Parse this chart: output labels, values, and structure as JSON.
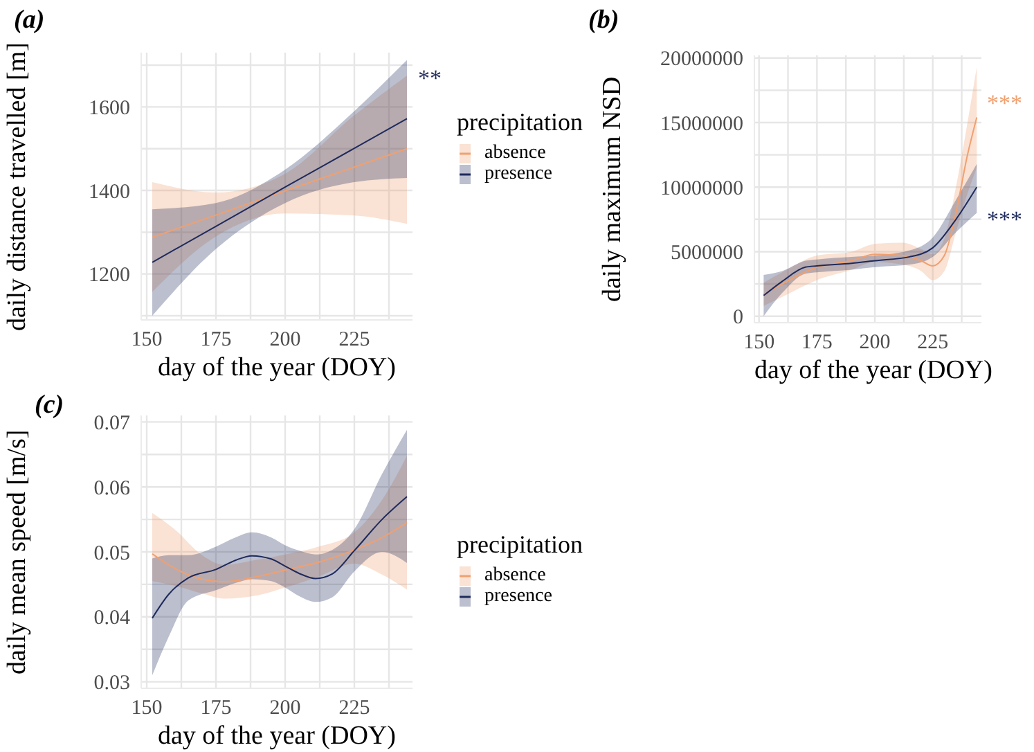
{
  "chart_data": [
    {
      "type": "line",
      "title": "(a)",
      "xlabel": "day of the year (DOY)",
      "ylabel": "daily distance travelled [m]",
      "legend_title": "precipitation",
      "legend": "right",
      "grid": true,
      "marker": "none",
      "line_style": "solid",
      "xlim": [
        148,
        246
      ],
      "xticks": [
        150,
        {
          "value": 162.5,
          "label": null
        },
        175,
        {
          "value": 187.5,
          "label": null
        },
        200,
        {
          "value": 212.5,
          "label": null
        },
        225,
        {
          "value": 237.5,
          "label": null
        }
      ],
      "ylim": [
        1090,
        1730
      ],
      "yticks": [
        {
          "value": 1100,
          "label": null
        },
        1200,
        {
          "value": 1300,
          "label": null
        },
        1400,
        {
          "value": 1500,
          "label": null
        },
        1600,
        {
          "value": 1700,
          "label": null
        }
      ],
      "series": [
        {
          "name": "absence",
          "color": "#f0a070",
          "x": [
            152,
            175,
            200,
            225,
            244
          ],
          "values": [
            1288,
            1341,
            1399,
            1456,
            1500
          ],
          "lower": [
            1157,
            1290,
            1345,
            1340,
            1320
          ],
          "upper": [
            1420,
            1395,
            1440,
            1580,
            1675
          ]
        },
        {
          "name": "presence",
          "color": "#1f2a5c",
          "x": [
            152,
            175,
            200,
            225,
            244
          ],
          "values": [
            1228,
            1314,
            1408,
            1501,
            1572
          ],
          "lower": [
            1100,
            1260,
            1370,
            1420,
            1430
          ],
          "upper": [
            1355,
            1370,
            1450,
            1590,
            1712
          ]
        }
      ],
      "annotations": [
        "**"
      ]
    },
    {
      "type": "line",
      "title": "(b)",
      "xlabel": "day of the year (DOY)",
      "ylabel": "daily maximum NSD",
      "grid": true,
      "marker": "none",
      "line_style": "solid",
      "xlim": [
        148,
        246
      ],
      "xticks": [
        150,
        {
          "value": 162.5,
          "label": null
        },
        175,
        {
          "value": 187.5,
          "label": null
        },
        200,
        {
          "value": 212.5,
          "label": null
        },
        225,
        {
          "value": 237.5,
          "label": null
        }
      ],
      "ylim": [
        -500000,
        20200000
      ],
      "yticks": [
        0,
        {
          "value": 2500000,
          "label": null
        },
        5000000,
        {
          "value": 7500000,
          "label": null
        },
        10000000,
        {
          "value": 12500000,
          "label": null
        },
        15000000,
        {
          "value": 17500000,
          "label": null
        },
        20000000
      ],
      "series": [
        {
          "color": "#f0a070",
          "x": [
            152,
            160,
            175,
            190,
            200,
            212,
            220,
            225,
            230,
            235,
            240,
            244
          ],
          "values": [
            1700000,
            2500000,
            3800000,
            4300000,
            4800000,
            4700000,
            4300000,
            3900000,
            4700000,
            8000000,
            12500000,
            15400000
          ],
          "lower": [
            800000,
            1500000,
            2800000,
            3600000,
            4200000,
            4000000,
            3500000,
            2800000,
            3500000,
            6500000,
            9500000,
            11500000
          ],
          "upper": [
            2600000,
            3400000,
            4700000,
            5000000,
            5600000,
            5700000,
            5200000,
            4800000,
            6000000,
            10000000,
            15000000,
            19300000
          ]
        },
        {
          "color": "#1f2a5c",
          "x": [
            152,
            160,
            170,
            175,
            190,
            200,
            215,
            225,
            235,
            244
          ],
          "values": [
            1600000,
            2700000,
            3800000,
            3900000,
            4100000,
            4300000,
            4600000,
            5300000,
            7500000,
            10000000
          ],
          "lower": [
            0,
            1800000,
            3300000,
            3400000,
            3600000,
            3800000,
            4000000,
            4600000,
            6500000,
            8000000
          ],
          "upper": [
            3200000,
            3500000,
            4300000,
            4400000,
            4600000,
            4700000,
            5100000,
            6100000,
            9000000,
            11800000
          ]
        }
      ],
      "annotations": [
        "***",
        "***"
      ]
    },
    {
      "type": "line",
      "title": "(c)",
      "xlabel": "day of the year (DOY)",
      "ylabel": "daily mean speed [m/s]",
      "legend_title": "precipitation",
      "legend": "right",
      "grid": true,
      "marker": "none",
      "line_style": "solid",
      "xlim": [
        148,
        246
      ],
      "xticks": [
        150,
        {
          "value": 162.5,
          "label": null
        },
        175,
        {
          "value": 187.5,
          "label": null
        },
        200,
        {
          "value": 212.5,
          "label": null
        },
        225,
        {
          "value": 237.5,
          "label": null
        }
      ],
      "ylim": [
        0.029,
        0.071
      ],
      "yticks": [
        0.03,
        {
          "value": 0.035,
          "label": null
        },
        0.04,
        {
          "value": 0.045,
          "label": null
        },
        0.05,
        {
          "value": 0.055,
          "label": null
        },
        0.06,
        {
          "value": 0.065,
          "label": null
        },
        0.07
      ],
      "series": [
        {
          "name": "absence",
          "color": "#f0a070",
          "x": [
            152,
            160,
            170,
            178,
            190,
            200,
            212,
            225,
            235,
            244
          ],
          "values": [
            0.0497,
            0.0475,
            0.0458,
            0.0454,
            0.0462,
            0.0472,
            0.0484,
            0.0503,
            0.0522,
            0.0545
          ],
          "lower": [
            0.0455,
            0.0448,
            0.0436,
            0.0428,
            0.0433,
            0.0445,
            0.0462,
            0.0482,
            0.0465,
            0.0442
          ],
          "upper": [
            0.056,
            0.0535,
            0.0495,
            0.048,
            0.0488,
            0.0496,
            0.0508,
            0.053,
            0.058,
            0.0648
          ]
        },
        {
          "name": "presence",
          "color": "#1f2a5c",
          "x": [
            152,
            158,
            165,
            175,
            182,
            188,
            195,
            200,
            205,
            211,
            217,
            225,
            235,
            244
          ],
          "values": [
            0.0398,
            0.0435,
            0.046,
            0.0473,
            0.0487,
            0.0494,
            0.0489,
            0.0478,
            0.0467,
            0.0459,
            0.0466,
            0.0502,
            0.055,
            0.0585
          ],
          "lower": [
            0.031,
            0.037,
            0.0425,
            0.0441,
            0.0452,
            0.0458,
            0.0455,
            0.0445,
            0.0432,
            0.0423,
            0.043,
            0.047,
            0.05,
            0.0483
          ],
          "upper": [
            0.049,
            0.0495,
            0.0495,
            0.0508,
            0.0522,
            0.053,
            0.0522,
            0.051,
            0.0502,
            0.0496,
            0.0503,
            0.0535,
            0.062,
            0.0688
          ]
        }
      ]
    }
  ]
}
